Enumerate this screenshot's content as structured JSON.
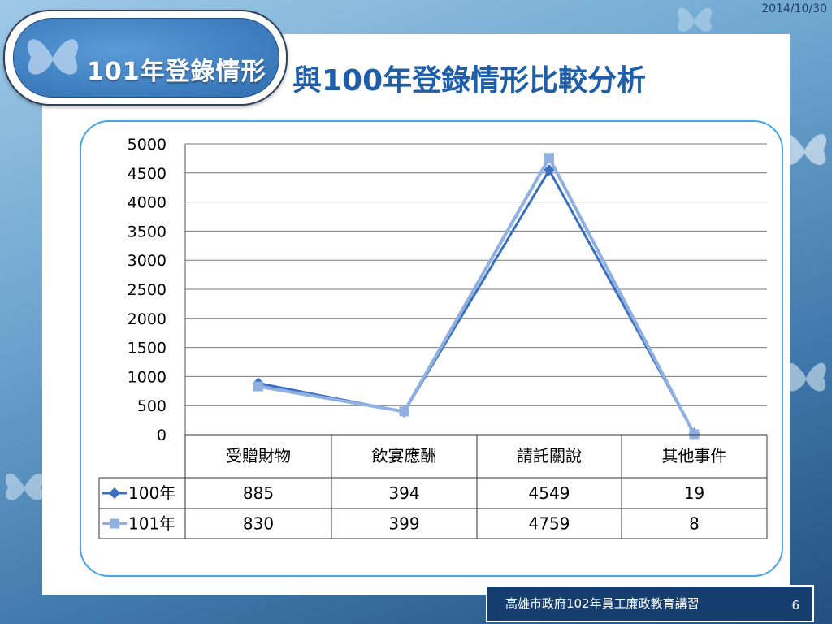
{
  "date": "2014/10/30",
  "badge": {
    "label": "101年登錄情形"
  },
  "title": "與100年登錄情形比較分析",
  "footer": {
    "org": "高雄市政府102年員工廉政教育講習",
    "page": "6"
  },
  "colors": {
    "series_100": "#3b6fbf",
    "series_101": "#8fb0e0",
    "title": "#1f5ea8",
    "frame": "#4aa5e6"
  },
  "chart_data": {
    "type": "line",
    "categories": [
      "受贈財物",
      "飲宴應酬",
      "請託關說",
      "其他事件"
    ],
    "series": [
      {
        "name": "100年",
        "values": [
          885,
          394,
          4549,
          19
        ],
        "marker": "diamond"
      },
      {
        "name": "101年",
        "values": [
          830,
          399,
          4759,
          8
        ],
        "marker": "square"
      }
    ],
    "ylim": [
      0,
      5000
    ],
    "yticks": [
      "0",
      "500",
      "1000",
      "1500",
      "2000",
      "2500",
      "3000",
      "3500",
      "4000",
      "4500",
      "5000"
    ],
    "grid": true,
    "legend": "data-table"
  }
}
